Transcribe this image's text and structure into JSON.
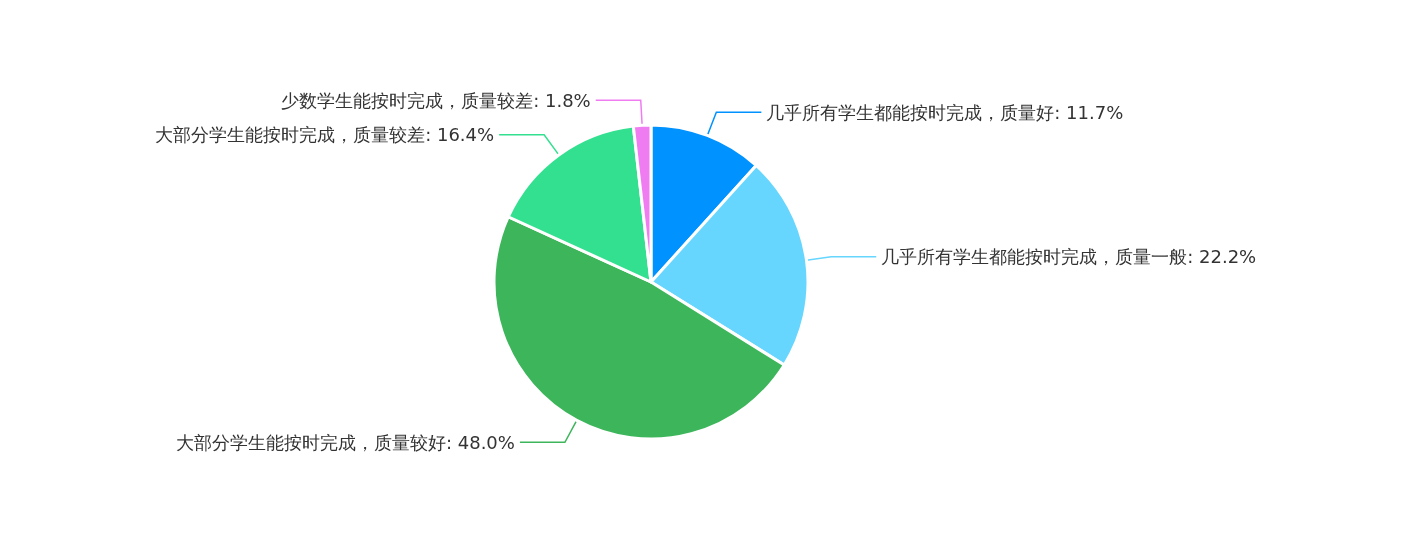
{
  "chart_data": {
    "type": "pie",
    "categories": [
      "几乎所有学生都能按时完成，质量好",
      "几乎所有学生都能按时完成，质量一般",
      "大部分学生能按时完成，质量较好",
      "大部分学生能按时完成，质量较差",
      "少数学生能按时完成，质量较差"
    ],
    "values": [
      11.7,
      22.2,
      48.0,
      16.4,
      1.8
    ],
    "value_labels": [
      "11.7%",
      "22.2%",
      "48.0%",
      "16.4%",
      "1.8%"
    ],
    "colors": [
      "#0092ff",
      "#66d6ff",
      "#3db55b",
      "#33e090",
      "#f07cf2"
    ],
    "legend": false
  }
}
